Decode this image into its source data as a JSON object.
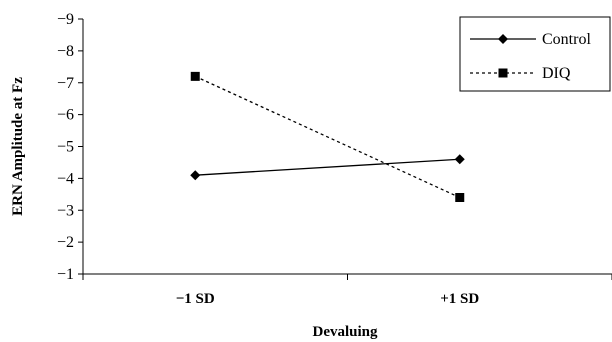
{
  "chart_data": {
    "type": "line",
    "title": "",
    "xlabel": "Devaluing",
    "ylabel": "ERN Amplitude at Fz",
    "categories": [
      "−1 SD",
      "+1 SD"
    ],
    "y_ticks": [
      "−9",
      "−8",
      "−7",
      "−6",
      "−5",
      "−4",
      "−3",
      "−2",
      "−1"
    ],
    "ylim": [
      -9,
      -1
    ],
    "y_reversed": true,
    "grid": false,
    "legend_position": "top-right",
    "series": [
      {
        "name": "Control",
        "values": [
          -4.1,
          -4.6
        ],
        "marker": "diamond",
        "line": "solid",
        "color": "#000000"
      },
      {
        "name": "DIQ",
        "values": [
          -7.2,
          -3.4
        ],
        "marker": "square",
        "line": "dotted",
        "color": "#000000"
      }
    ]
  }
}
